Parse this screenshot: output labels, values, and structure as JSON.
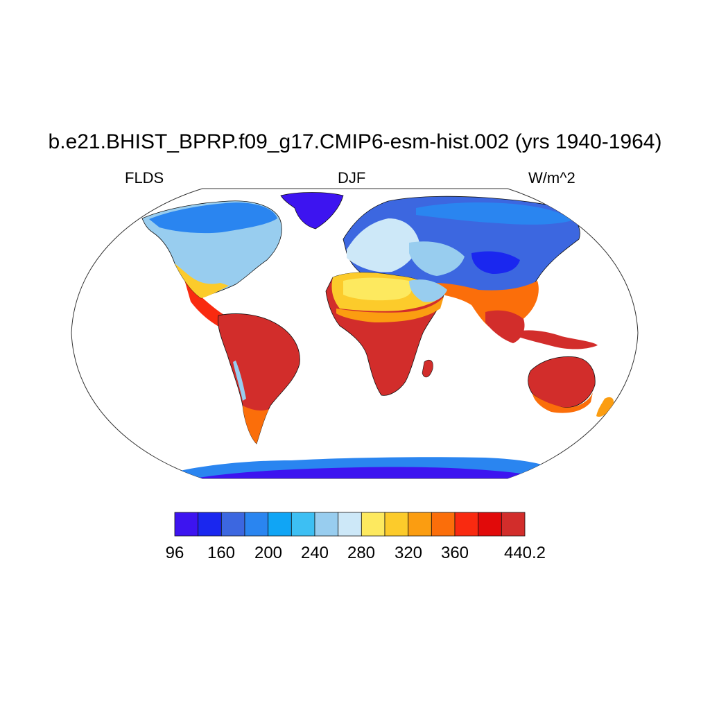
{
  "title": "b.e21.BHIST_BPRP.f09_g17.CMIP6-esm-hist.002 (yrs 1940-1964)",
  "subtitle": {
    "left": "FLDS",
    "center": "DJF",
    "right": "W/m^2"
  },
  "colorbar": {
    "colors": [
      "#3d14f0",
      "#1a27ef",
      "#3c67e0",
      "#2a85f0",
      "#10a5f5",
      "#3dbff3",
      "#98cdef",
      "#cde8f8",
      "#fde95f",
      "#fccb2b",
      "#fb9d11",
      "#fb6e0a",
      "#f92a10",
      "#e10a0a",
      "#d22d2b"
    ],
    "tick_labels": [
      "96",
      "160",
      "200",
      "240",
      "280",
      "320",
      "360",
      "440.2"
    ]
  },
  "legend": {
    "ocean": "#ffffff",
    "arctic": "#3d14f0",
    "boreal": "#2a85f0",
    "midlat": "#98cdef",
    "subtrop": "#fccb2b",
    "tropics": "#d22d2b",
    "antarctic": "#3d14f0"
  }
}
